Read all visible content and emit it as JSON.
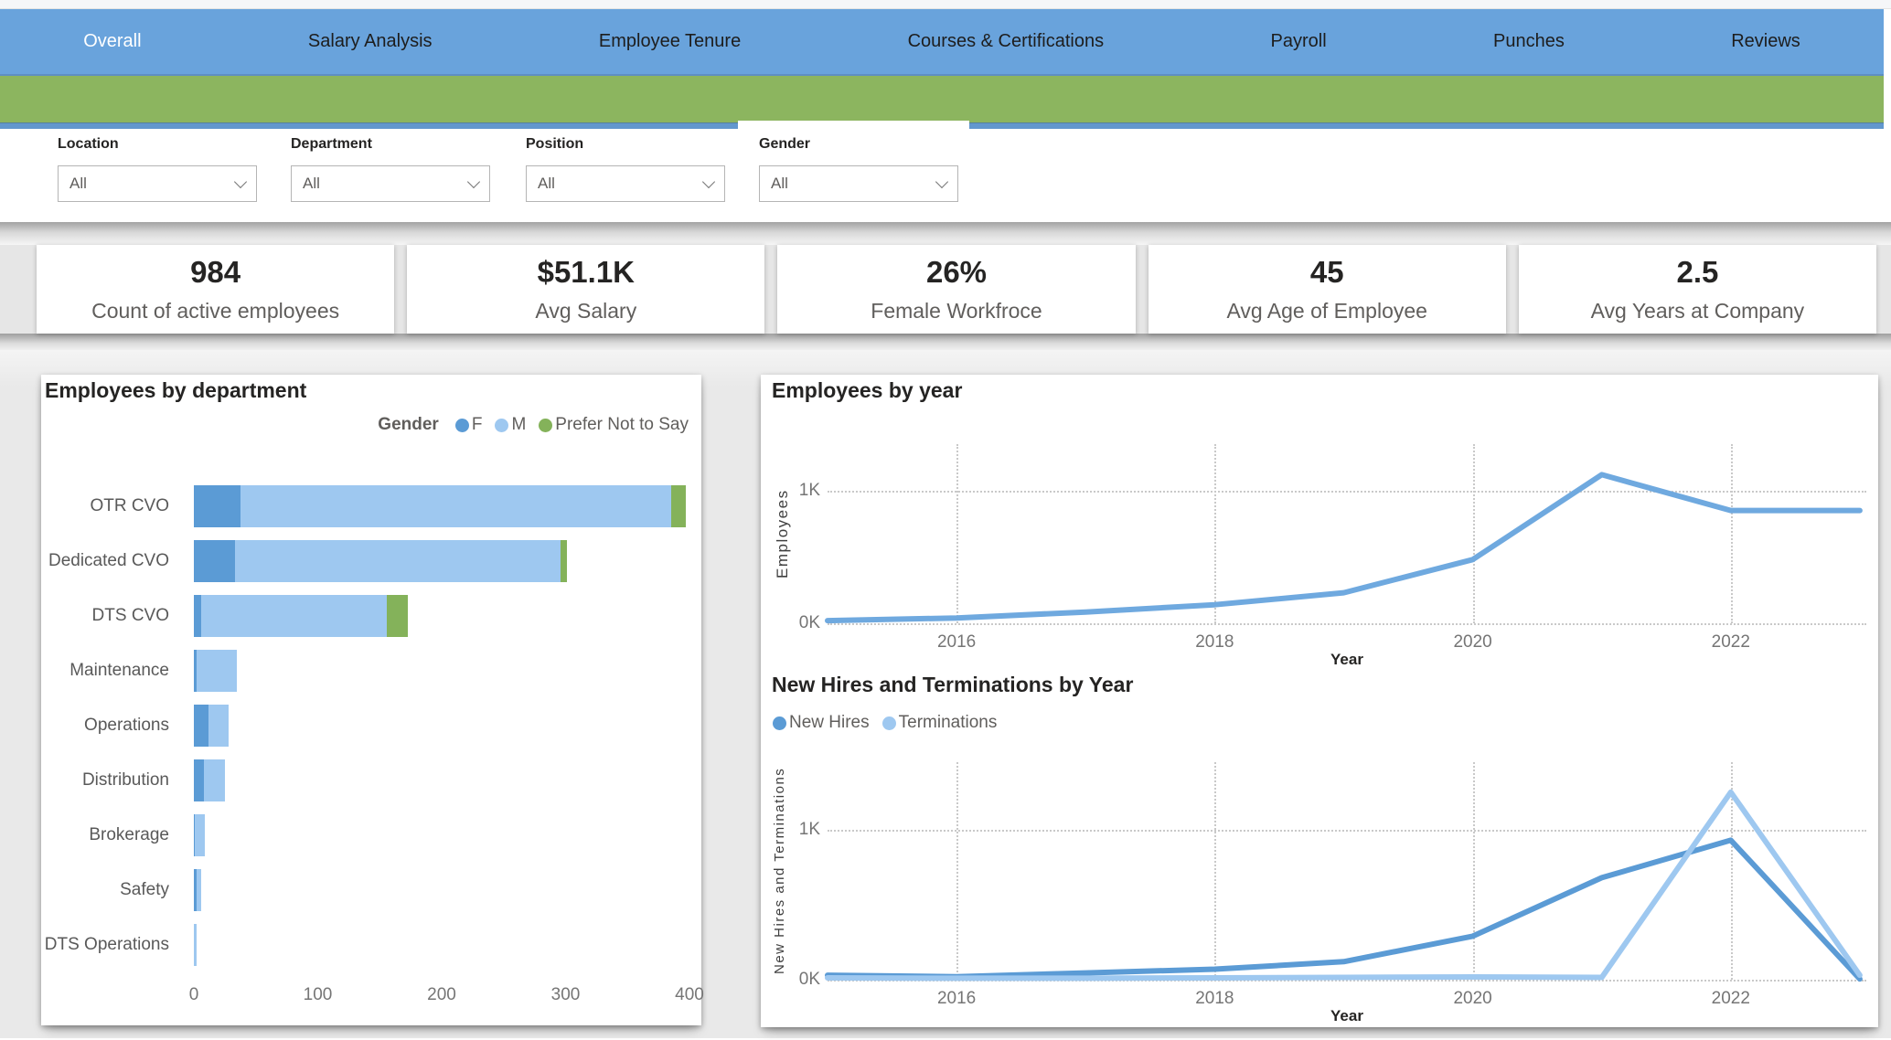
{
  "nav": {
    "tabs": [
      {
        "label": "Overall",
        "active": true
      },
      {
        "label": "Salary Analysis",
        "active": false
      },
      {
        "label": "Employee Tenure",
        "active": false
      },
      {
        "label": "Courses & Certifications",
        "active": false
      },
      {
        "label": "Payroll",
        "active": false
      },
      {
        "label": "Punches",
        "active": false
      },
      {
        "label": "Reviews",
        "active": false
      }
    ]
  },
  "filters": {
    "items": [
      {
        "label": "Location",
        "value": "All",
        "highlighted": false
      },
      {
        "label": "Department",
        "value": "All",
        "highlighted": false
      },
      {
        "label": "Position",
        "value": "All",
        "highlighted": false
      },
      {
        "label": "Gender",
        "value": "All",
        "highlighted": true
      }
    ]
  },
  "kpis": [
    {
      "value": "984",
      "label": "Count of active employees"
    },
    {
      "value": "$51.1K",
      "label": "Avg Salary"
    },
    {
      "value": "26%",
      "label": "Female Workfroce"
    },
    {
      "value": "45",
      "label": "Avg Age of Employee"
    },
    {
      "value": "2.5",
      "label": "Avg Years at Company"
    }
  ],
  "colors": {
    "nav_blue": "#69A3DC",
    "banner_green": "#8CB55F",
    "female_blue": "#5B9BD5",
    "male_blue": "#9EC8F0",
    "prefer_green": "#84B25A",
    "line_blue": "#6FA9DF",
    "text_dark": "#252423",
    "text_gray": "#605E5C",
    "tick_gray": "#757575"
  },
  "chart_data": [
    {
      "id": "employees_by_department",
      "type": "bar",
      "orientation": "horizontal",
      "title": "Employees by department",
      "legend": {
        "title": "Gender",
        "position": "top-right"
      },
      "categories": [
        "OTR CVO",
        "Dedicated CVO",
        "DTS CVO",
        "Maintenance",
        "Operations",
        "Distribution",
        "Brokerage",
        "Safety",
        "DTS Operations"
      ],
      "series": [
        {
          "name": "F",
          "color": "#5B9BD5",
          "values": [
            38,
            33,
            6,
            2,
            12,
            8,
            1,
            2,
            0
          ]
        },
        {
          "name": "M",
          "color": "#9EC8F0",
          "values": [
            347,
            263,
            150,
            33,
            16,
            17,
            8,
            4,
            2
          ]
        },
        {
          "name": "Prefer Not to Say",
          "color": "#84B25A",
          "values": [
            12,
            5,
            17,
            0,
            0,
            0,
            0,
            0,
            0
          ]
        }
      ],
      "xlabel": "",
      "ylabel": "",
      "xlim": [
        0,
        400
      ],
      "xticks": [
        0,
        100,
        200,
        300,
        400
      ],
      "grid": false
    },
    {
      "id": "employees_by_year",
      "type": "line",
      "title": "Employees by year",
      "xlabel": "Year",
      "ylabel": "Employees",
      "x": [
        2015,
        2016,
        2017,
        2018,
        2019,
        2020,
        2021,
        2022,
        2023
      ],
      "series": [
        {
          "name": "Employees",
          "color": "#6FA9DF",
          "values": [
            20,
            40,
            85,
            140,
            230,
            480,
            1120,
            850,
            850
          ]
        }
      ],
      "xlim": [
        2015,
        2023.05
      ],
      "ylim": [
        0,
        1350
      ],
      "xticks": [
        2016,
        2018,
        2020,
        2022
      ],
      "yticks": [
        {
          "value": 0,
          "label": "0K"
        },
        {
          "value": 1000,
          "label": "1K"
        }
      ],
      "grid": "dotted",
      "legend": null
    },
    {
      "id": "new_hires_terminations_by_year",
      "type": "line",
      "title": "New Hires and Terminations by Year",
      "xlabel": "Year",
      "ylabel": "New Hires and Terminations",
      "x": [
        2015,
        2016,
        2017,
        2018,
        2019,
        2020,
        2021,
        2022,
        2023
      ],
      "series": [
        {
          "name": "New Hires",
          "color": "#5B9BD5",
          "values": [
            30,
            20,
            45,
            70,
            120,
            290,
            680,
            930,
            5
          ]
        },
        {
          "name": "Terminations",
          "color": "#9EC8F0",
          "values": [
            12,
            10,
            10,
            12,
            15,
            18,
            15,
            1250,
            30
          ]
        }
      ],
      "xlim": [
        2015,
        2023.05
      ],
      "ylim": [
        0,
        1450
      ],
      "xticks": [
        2016,
        2018,
        2020,
        2022
      ],
      "yticks": [
        {
          "value": 0,
          "label": "0K"
        },
        {
          "value": 1000,
          "label": "1K"
        }
      ],
      "grid": "dotted",
      "legend": {
        "position": "top-left"
      }
    }
  ]
}
